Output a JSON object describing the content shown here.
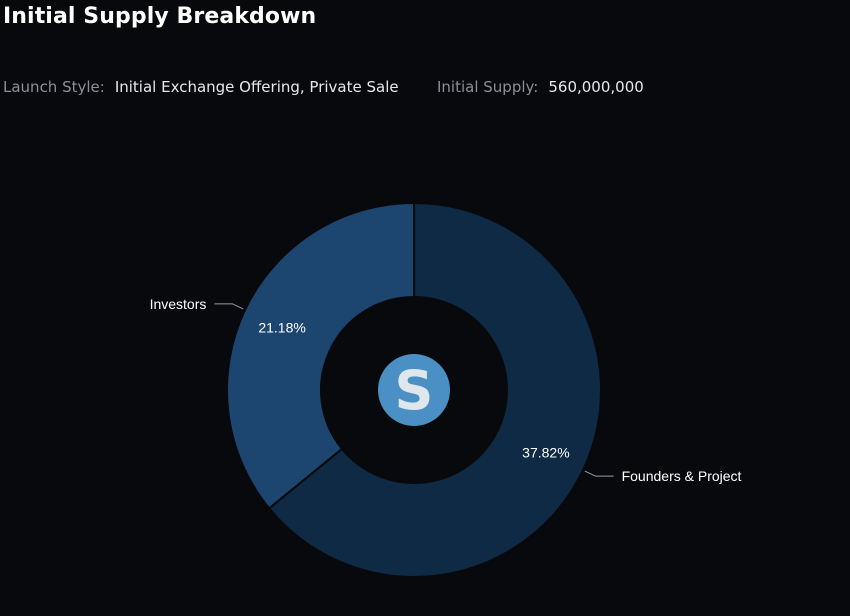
{
  "header": {
    "title": "Initial Supply Breakdown",
    "launch_style_label": "Launch Style:",
    "launch_style_value": "Initial Exchange Offering, Private Sale",
    "initial_supply_label": "Initial Supply:",
    "initial_supply_value": "560,000,000"
  },
  "chart_data": {
    "type": "pie",
    "variant": "donut",
    "title": "",
    "slices": [
      {
        "label": "Founders & Project",
        "value": 37.82,
        "value_label": "37.82%",
        "color": "#0e2a45"
      },
      {
        "label": "Investors",
        "value": 21.18,
        "value_label": "21.18%",
        "color": "#1c4670"
      }
    ],
    "start_angle_deg": 0,
    "direction": "clockwise",
    "center_logo": {
      "icon": "sandbox-s-logo-icon",
      "letter": "S",
      "color": "#4a90c4",
      "letter_color": "#dfe6ec"
    }
  },
  "colors": {
    "background": "#08090c",
    "slice_border": "#08090c",
    "leader_line": "#9a9ea5"
  }
}
